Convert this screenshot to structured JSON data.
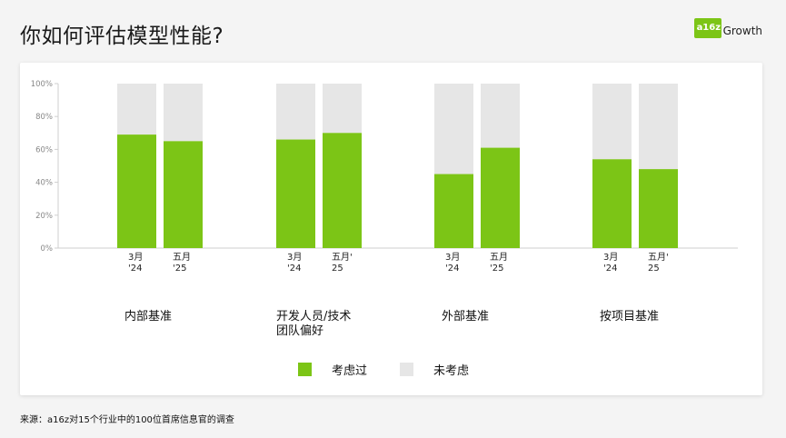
{
  "header": {
    "title": "你如何评估模型性能?",
    "logo_badge": "a16z",
    "logo_text": "Growth"
  },
  "footnote": "来源：a16z对15个行业中的100位首席信息官的调查",
  "colors": {
    "considered": "#7cc516",
    "not_considered": "#e6e6e6"
  },
  "chart_data": {
    "type": "bar",
    "stacked": true,
    "yaxis": {
      "min": 0,
      "max": 100,
      "ticks": [
        "0%",
        "20%",
        "40%",
        "60%",
        "80%",
        "100%"
      ],
      "tick_values": [
        0,
        20,
        40,
        60,
        80,
        100
      ]
    },
    "grid": false,
    "legend_position": "bottom",
    "groups": [
      {
        "label": "内部基准",
        "label_lines": [
          "内部基准"
        ],
        "bars": [
          {
            "period_lines": [
              "3月",
              "'24"
            ],
            "considered": 69
          },
          {
            "period_lines": [
              "五月",
              "'25"
            ],
            "considered": 65
          }
        ]
      },
      {
        "label": "开发人员/技术团队偏好",
        "label_lines": [
          "开发人员/技术",
          "团队偏好"
        ],
        "bars": [
          {
            "period_lines": [
              "3月",
              "'24"
            ],
            "considered": 66
          },
          {
            "period_lines": [
              "五月'",
              "25"
            ],
            "considered": 70
          }
        ]
      },
      {
        "label": "外部基准",
        "label_lines": [
          "外部基准"
        ],
        "bars": [
          {
            "period_lines": [
              "3月",
              "'24"
            ],
            "considered": 45
          },
          {
            "period_lines": [
              "五月",
              "'25"
            ],
            "considered": 61
          }
        ]
      },
      {
        "label": "按项目基准",
        "label_lines": [
          "按项目基准"
        ],
        "bars": [
          {
            "period_lines": [
              "3月",
              "'24"
            ],
            "considered": 54
          },
          {
            "period_lines": [
              "五月'",
              "25"
            ],
            "considered": 48
          }
        ]
      }
    ],
    "series": [
      {
        "name": "考虑过",
        "color": "#7cc516"
      },
      {
        "name": "未考虑",
        "color": "#e6e6e6"
      }
    ]
  }
}
